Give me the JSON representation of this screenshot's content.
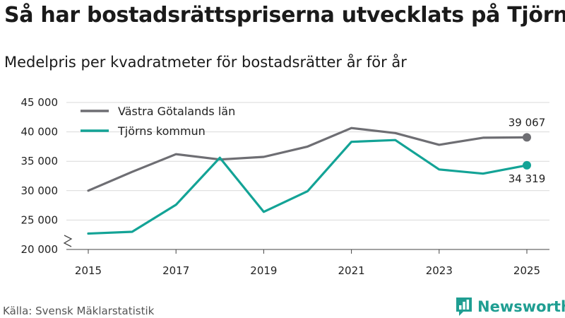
{
  "title": "Så har bostadsrättspriserna utvecklats på Tjörn",
  "subtitle": "Medelpris per kvadratmeter för bostadsrätter år för år",
  "source": "Källa: Svensk Mäklarstatistik",
  "brand": {
    "name": "Newsworthy",
    "icon": "bar-chart-speech-bubble-icon",
    "color": "#1f9e92"
  },
  "chart_data": {
    "type": "line",
    "title": "Så har bostadsrättspriserna utvecklats på Tjörn",
    "subtitle": "Medelpris per kvadratmeter för bostadsrätter år för år",
    "xlabel": "",
    "ylabel": "",
    "x": [
      2015,
      2016,
      2017,
      2018,
      2019,
      2020,
      2021,
      2022,
      2023,
      2024,
      2025
    ],
    "xticks": [
      2015,
      2017,
      2019,
      2021,
      2023,
      2025
    ],
    "xtick_labels": [
      "2015",
      "2017",
      "2019",
      "2021",
      "2023",
      "2025"
    ],
    "ylim": [
      20000,
      45000
    ],
    "yticks": [
      20000,
      25000,
      30000,
      35000,
      40000,
      45000
    ],
    "ytick_labels": [
      "20 000",
      "25 000",
      "30 000",
      "35 000",
      "40 000",
      "45 000"
    ],
    "y_axis_break": true,
    "grid": true,
    "legend_position": "top-left",
    "series": [
      {
        "name": "Västra Götalands län",
        "color": "#6e6e73",
        "values": [
          30000,
          33200,
          36200,
          35300,
          35750,
          37500,
          40650,
          39800,
          37800,
          39000,
          39067
        ],
        "end_label": "39 067"
      },
      {
        "name": "Tjörns kommun",
        "color": "#13a396",
        "values": [
          22700,
          23000,
          27600,
          35600,
          26400,
          29900,
          38300,
          38600,
          33600,
          32900,
          34319
        ],
        "end_label": "34 319"
      }
    ]
  }
}
